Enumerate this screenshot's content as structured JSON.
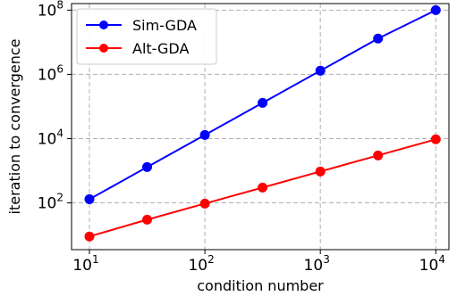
{
  "chart_data": {
    "type": "line",
    "xlabel": "condition number",
    "ylabel": "iteration to convergence",
    "xscale": "log",
    "yscale": "log",
    "xlim": [
      7,
      13000
    ],
    "ylim": [
      3.5,
      160000000
    ],
    "xticks": [
      10,
      100,
      1000,
      10000
    ],
    "yticks": [
      100,
      10000,
      1000000,
      100000000
    ],
    "grid": true,
    "legend_position": "top-left",
    "series": [
      {
        "name": "Sim-GDA",
        "color": "#0000ff",
        "marker": "circle",
        "x": [
          10,
          31.6,
          100,
          316,
          1000,
          3160,
          10000
        ],
        "y": [
          130,
          1300,
          13000,
          130000,
          1300000,
          13000000,
          100000000
        ]
      },
      {
        "name": "Alt-GDA",
        "color": "#ff0000",
        "marker": "circle",
        "x": [
          10,
          31.6,
          100,
          316,
          1000,
          3160,
          10000
        ],
        "y": [
          9,
          30,
          95,
          300,
          950,
          3000,
          9500
        ]
      }
    ]
  }
}
